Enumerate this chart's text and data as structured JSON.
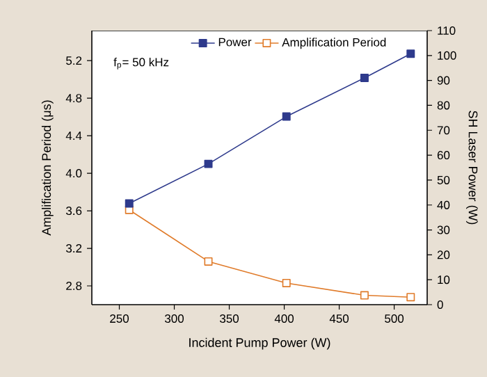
{
  "chart_data": {
    "type": "line",
    "xlabel": "Incident Pump Power (W)",
    "ylabel": "Amplification Period (μs)",
    "y2label": "SH Laser Power (W)",
    "annotations": [
      "f$_{p}$= 50 kHz"
    ],
    "x": [
      259,
      331,
      402,
      473,
      515
    ],
    "series": [
      {
        "name": "Power",
        "color": "#2e3a8c",
        "axis": "y2",
        "values": [
          40.6,
          56.5,
          75.5,
          91,
          100.7
        ]
      },
      {
        "name": "Amplification Period",
        "color": "#e07b2a",
        "axis": "y",
        "values": [
          3.61,
          3.06,
          2.83,
          2.7,
          2.68
        ]
      }
    ],
    "xlim": [
      225,
      530
    ],
    "ylim": [
      2.6,
      5.52
    ],
    "y2lim": [
      0,
      110
    ],
    "xticks": [
      250,
      300,
      350,
      400,
      450,
      500
    ],
    "yticks": [
      2.8,
      3.2,
      3.6,
      {
        "value": 4.0,
        "label": "4.0"
      },
      4.4,
      4.8,
      5.2
    ],
    "y2ticks": [
      0,
      10,
      20,
      30,
      40,
      50,
      60,
      70,
      80,
      90,
      100,
      110
    ],
    "marker": "square",
    "legend": "top right",
    "grid": false
  }
}
